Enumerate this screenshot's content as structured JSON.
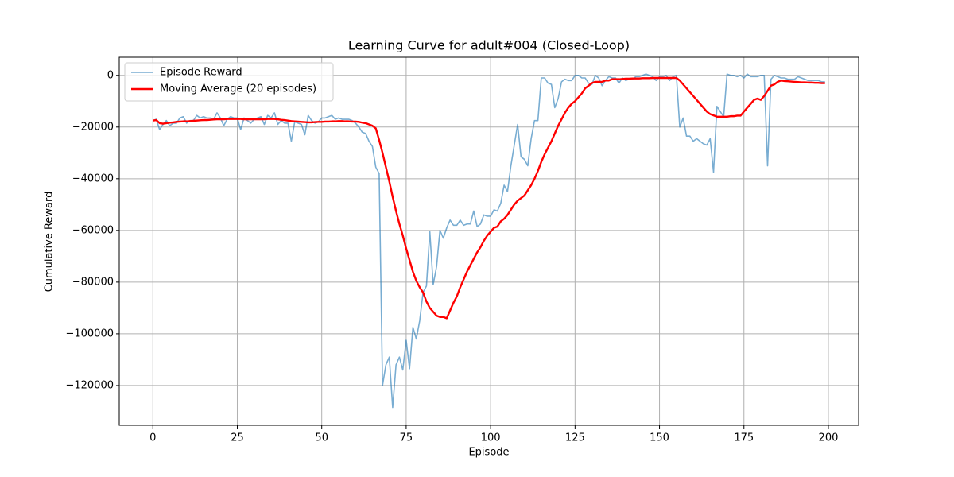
{
  "chart_data": {
    "type": "line",
    "title": "Learning Curve for adult#004 (Closed-Loop)",
    "x_label": "Episode",
    "y_label": "Cumulative Reward",
    "x": [
      0,
      1,
      2,
      3,
      4,
      5,
      6,
      7,
      8,
      9,
      10,
      11,
      12,
      13,
      14,
      15,
      16,
      17,
      18,
      19,
      20,
      21,
      22,
      23,
      24,
      25,
      26,
      27,
      28,
      29,
      30,
      31,
      32,
      33,
      34,
      35,
      36,
      37,
      38,
      39,
      40,
      41,
      42,
      43,
      44,
      45,
      46,
      47,
      48,
      49,
      50,
      51,
      52,
      53,
      54,
      55,
      56,
      57,
      58,
      59,
      60,
      61,
      62,
      63,
      64,
      65,
      66,
      67,
      68,
      69,
      70,
      71,
      72,
      73,
      74,
      75,
      76,
      77,
      78,
      79,
      80,
      81,
      82,
      83,
      84,
      85,
      86,
      87,
      88,
      89,
      90,
      91,
      92,
      93,
      94,
      95,
      96,
      97,
      98,
      99,
      100,
      101,
      102,
      103,
      104,
      105,
      106,
      107,
      108,
      109,
      110,
      111,
      112,
      113,
      114,
      115,
      116,
      117,
      118,
      119,
      120,
      121,
      122,
      123,
      124,
      125,
      126,
      127,
      128,
      129,
      130,
      131,
      132,
      133,
      134,
      135,
      136,
      137,
      138,
      139,
      140,
      141,
      142,
      143,
      144,
      145,
      146,
      147,
      148,
      149,
      150,
      151,
      152,
      153,
      154,
      155,
      156,
      157,
      158,
      159,
      160,
      161,
      162,
      163,
      164,
      165,
      166,
      167,
      168,
      169,
      170,
      171,
      172,
      173,
      174,
      175,
      176,
      177,
      178,
      179,
      180,
      181,
      182,
      183,
      184,
      185,
      186,
      187,
      188,
      189,
      190,
      191,
      192,
      193,
      194,
      195,
      196,
      197,
      198,
      199
    ],
    "series": [
      {
        "name": "Episode Reward",
        "color": "#1f77b4",
        "values": [
          -17500,
          -17000,
          -21000,
          -19000,
          -17500,
          -19500,
          -18500,
          -18500,
          -16500,
          -16000,
          -18500,
          -17500,
          -17500,
          -15500,
          -16500,
          -16000,
          -16500,
          -16500,
          -17000,
          -14500,
          -16500,
          -19500,
          -17000,
          -16000,
          -16500,
          -16500,
          -21000,
          -16500,
          -17500,
          -18500,
          -17000,
          -16500,
          -16000,
          -19000,
          -15500,
          -16500,
          -14500,
          -19000,
          -17500,
          -18500,
          -18500,
          -25500,
          -18000,
          -18500,
          -19000,
          -23000,
          -15500,
          -17500,
          -18500,
          -18000,
          -16500,
          -16500,
          -16000,
          -15500,
          -17000,
          -16500,
          -17000,
          -17000,
          -17000,
          -17500,
          -18500,
          -20000,
          -22000,
          -22500,
          -25500,
          -27500,
          -35500,
          -38000,
          -120000,
          -112000,
          -109000,
          -128500,
          -112000,
          -109000,
          -114000,
          -102500,
          -113500,
          -97500,
          -102000,
          -95000,
          -84000,
          -81500,
          -60500,
          -81000,
          -74000,
          -60000,
          -63000,
          -59000,
          -56000,
          -58000,
          -58000,
          -56000,
          -58000,
          -57500,
          -57500,
          -52500,
          -58500,
          -57500,
          -54000,
          -54500,
          -54500,
          -52000,
          -52500,
          -49500,
          -42500,
          -45000,
          -35000,
          -27000,
          -19000,
          -31500,
          -32500,
          -35000,
          -24500,
          -17500,
          -17500,
          -1000,
          -1000,
          -3000,
          -3500,
          -12500,
          -9000,
          -2500,
          -1500,
          -2000,
          -2000,
          0,
          0,
          -1000,
          -1000,
          -3000,
          -3500,
          0,
          -1000,
          -4000,
          -2000,
          -500,
          -1000,
          -1000,
          -3000,
          -1000,
          -2000,
          -1500,
          -1500,
          -500,
          -500,
          0,
          500,
          0,
          -500,
          -2000,
          -500,
          -500,
          0,
          -2000,
          -500,
          0,
          -20000,
          -16500,
          -23500,
          -23500,
          -25500,
          -24500,
          -25500,
          -26500,
          -27000,
          -24500,
          -37500,
          -12000,
          -14000,
          -16000,
          500,
          0,
          0,
          -500,
          0,
          -1000,
          500,
          -500,
          -500,
          -500,
          0,
          0,
          -35000,
          -1500,
          0,
          -500,
          -1000,
          -1000,
          -1500,
          -1500,
          -1500,
          -500,
          -1000,
          -1500,
          -2000,
          -2000,
          -2000,
          -2000,
          -2500,
          -2500
        ]
      },
      {
        "name": "Moving Average (20 episodes)",
        "color": "#ff0000",
        "values": [
          -17500,
          -17300,
          -18500,
          -18700,
          -18500,
          -18300,
          -18200,
          -18000,
          -17900,
          -17800,
          -17800,
          -17700,
          -17600,
          -17500,
          -17400,
          -17300,
          -17300,
          -17200,
          -17100,
          -17000,
          -17000,
          -17000,
          -16900,
          -16900,
          -16900,
          -16900,
          -16900,
          -17000,
          -17000,
          -17000,
          -17000,
          -17000,
          -17000,
          -17000,
          -16900,
          -16900,
          -16900,
          -17000,
          -17200,
          -17300,
          -17500,
          -17700,
          -17800,
          -17900,
          -18000,
          -18100,
          -18200,
          -18200,
          -18100,
          -18000,
          -18000,
          -17900,
          -17900,
          -17800,
          -17800,
          -17700,
          -17700,
          -17800,
          -17800,
          -17900,
          -17900,
          -18000,
          -18300,
          -18500,
          -19000,
          -19500,
          -20500,
          -25000,
          -30000,
          -35500,
          -41000,
          -47000,
          -52500,
          -57500,
          -62000,
          -67000,
          -71500,
          -76000,
          -79500,
          -82000,
          -84000,
          -87500,
          -90000,
          -91500,
          -93000,
          -93500,
          -93500,
          -94000,
          -91000,
          -88000,
          -85500,
          -82000,
          -79000,
          -76000,
          -73500,
          -71000,
          -68500,
          -66500,
          -64000,
          -62000,
          -60500,
          -59000,
          -58500,
          -56500,
          -55500,
          -54000,
          -52000,
          -50000,
          -48500,
          -47500,
          -46500,
          -44500,
          -42500,
          -40000,
          -37000,
          -33500,
          -30500,
          -28000,
          -25500,
          -22500,
          -19500,
          -17000,
          -14500,
          -12500,
          -11000,
          -10000,
          -8500,
          -7000,
          -5000,
          -4000,
          -3000,
          -2500,
          -2500,
          -2500,
          -2000,
          -2000,
          -1500,
          -1500,
          -1500,
          -1400,
          -1300,
          -1300,
          -1200,
          -1200,
          -1200,
          -1100,
          -1100,
          -1100,
          -1000,
          -1000,
          -1000,
          -1000,
          -1000,
          -1000,
          -1000,
          -1000,
          -2000,
          -3500,
          -5000,
          -6500,
          -8000,
          -9500,
          -11000,
          -12500,
          -14000,
          -15000,
          -15500,
          -16000,
          -16000,
          -16000,
          -16000,
          -15800,
          -15800,
          -15600,
          -15600,
          -14000,
          -12500,
          -11000,
          -9500,
          -9000,
          -9500,
          -8000,
          -6000,
          -4000,
          -3500,
          -2500,
          -2000,
          -2200,
          -2300,
          -2400,
          -2500,
          -2600,
          -2700,
          -2700,
          -2800,
          -2800,
          -2900,
          -2900,
          -3000,
          -3000
        ]
      }
    ],
    "xlim": [
      -9.95,
      208.95
    ],
    "ylim": [
      -135400,
      7000
    ],
    "xticks": [
      0,
      25,
      50,
      75,
      100,
      125,
      150,
      175,
      200
    ],
    "yticks": [
      -120000,
      -100000,
      -80000,
      -60000,
      -40000,
      -20000,
      0
    ],
    "grid": true,
    "legend": "upper-left"
  }
}
